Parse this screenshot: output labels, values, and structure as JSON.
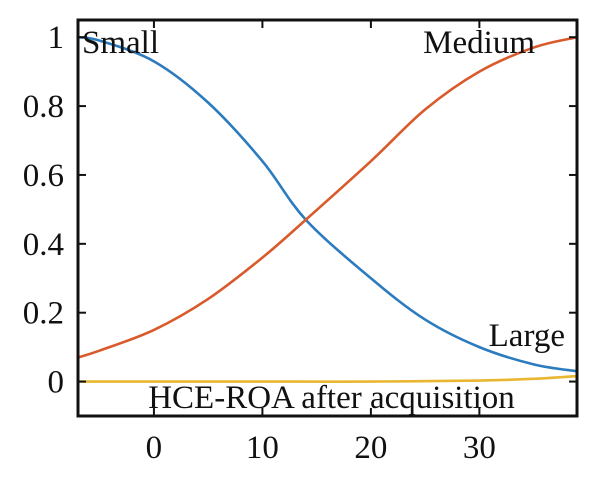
{
  "chart_data": {
    "type": "line",
    "title": "",
    "xlabel": "HCE-ROA after acquisition",
    "ylabel": "",
    "xlim": [
      -7,
      39
    ],
    "ylim": [
      -0.1,
      1.05
    ],
    "x_ticks": [
      0,
      10,
      20,
      30
    ],
    "y_ticks": [
      0,
      0.2,
      0.4,
      0.6,
      0.8,
      1
    ],
    "x_tick_labels": [
      "0",
      "10",
      "20",
      "30"
    ],
    "y_tick_labels": [
      "0",
      "0.2",
      "0.4",
      "0.6",
      "0.8",
      "1"
    ],
    "grid": false,
    "series": [
      {
        "name": "Small",
        "color": "#2c7bbf",
        "x": [
          -7,
          -5,
          0,
          5,
          10,
          14,
          20,
          25,
          30,
          35,
          39
        ],
        "values": [
          1.0,
          0.99,
          0.93,
          0.81,
          0.64,
          0.47,
          0.3,
          0.18,
          0.1,
          0.05,
          0.03
        ]
      },
      {
        "name": "Medium",
        "color": "#d95a2b",
        "x": [
          -7,
          -5,
          0,
          5,
          10,
          14,
          20,
          25,
          30,
          35,
          39
        ],
        "values": [
          0.07,
          0.09,
          0.15,
          0.24,
          0.36,
          0.47,
          0.64,
          0.79,
          0.9,
          0.97,
          1.0
        ]
      },
      {
        "name": "Large",
        "color": "#e8b631",
        "x": [
          -7,
          0,
          10,
          20,
          30,
          35,
          39
        ],
        "values": [
          0.0,
          0.0,
          0.0,
          0.0,
          0.003,
          0.008,
          0.016
        ]
      }
    ]
  }
}
